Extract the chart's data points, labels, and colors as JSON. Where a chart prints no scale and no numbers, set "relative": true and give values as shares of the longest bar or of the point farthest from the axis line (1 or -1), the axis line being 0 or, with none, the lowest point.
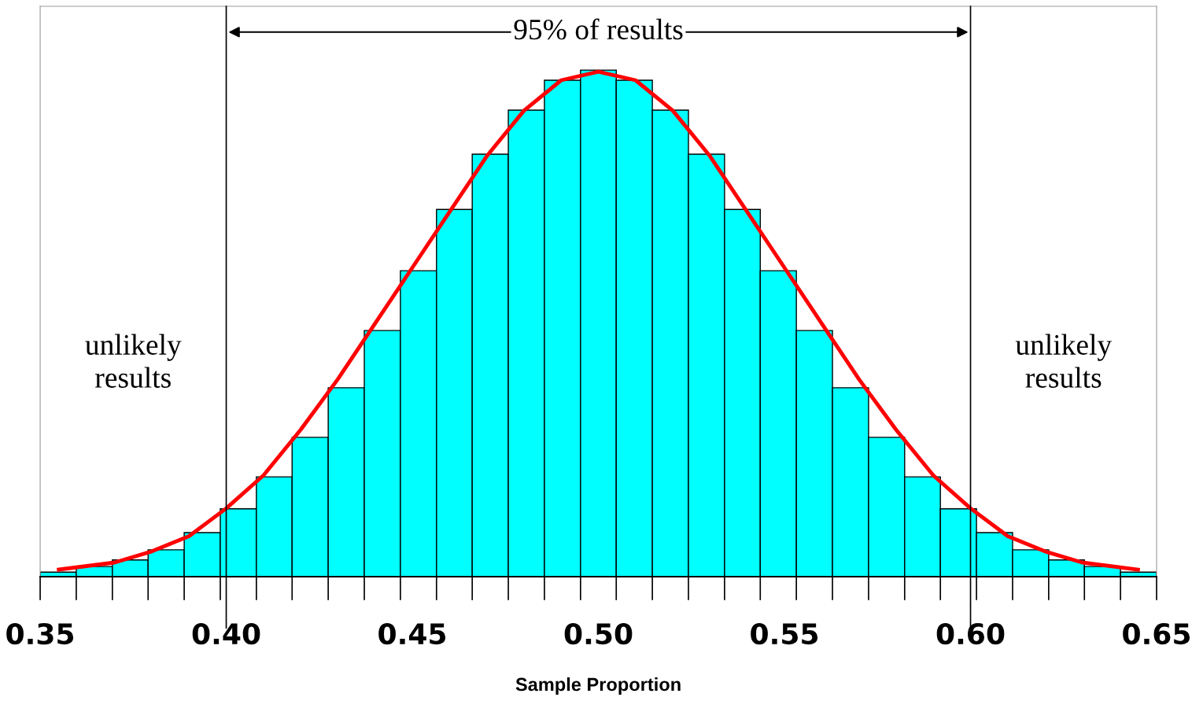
{
  "chart_data": {
    "type": "histogram",
    "relative": true,
    "xlabel": "Sample Proportion",
    "xlim": [
      0.35,
      0.65
    ],
    "xticks": [
      {
        "value": 0.35,
        "label": "0.35"
      },
      {
        "value": 0.4,
        "label": "0.40"
      },
      {
        "value": 0.45,
        "label": "0.45"
      },
      {
        "value": 0.5,
        "label": "0.50"
      },
      {
        "value": 0.55,
        "label": "0.55"
      },
      {
        "value": 0.6,
        "label": "0.60"
      },
      {
        "value": 0.65,
        "label": "0.65"
      }
    ],
    "series": [
      {
        "color": "#00ffff",
        "bins": [
          0.35,
          0.3597,
          0.3694,
          0.379,
          0.3887,
          0.3984,
          0.4081,
          0.4177,
          0.4274,
          0.4371,
          0.4468,
          0.4565,
          0.4661,
          0.4758,
          0.4855,
          0.4952,
          0.5048,
          0.5145,
          0.5242,
          0.5339,
          0.5435,
          0.5532,
          0.5629,
          0.5726,
          0.5823,
          0.5919,
          0.6016,
          0.6113,
          0.621,
          0.6306,
          0.6403,
          0.65
        ],
        "values": [
          0.009,
          0.02,
          0.033,
          0.053,
          0.087,
          0.134,
          0.197,
          0.275,
          0.373,
          0.486,
          0.604,
          0.725,
          0.834,
          0.921,
          0.98,
          1,
          0.98,
          0.921,
          0.834,
          0.725,
          0.604,
          0.486,
          0.373,
          0.275,
          0.197,
          0.134,
          0.087,
          0.053,
          0.033,
          0.02,
          0.009
        ]
      },
      {
        "type": "line",
        "color": "#ff0000",
        "x": [
          0.355,
          0.37,
          0.38,
          0.39,
          0.4,
          0.41,
          0.42,
          0.43,
          0.44,
          0.45,
          0.46,
          0.47,
          0.48,
          0.49,
          0.5,
          0.51,
          0.52,
          0.53,
          0.54,
          0.55,
          0.56,
          0.57,
          0.58,
          0.59,
          0.6,
          0.61,
          0.62,
          0.63,
          0.645
        ],
        "values": [
          0.014,
          0.028,
          0.05,
          0.08,
          0.135,
          0.2,
          0.29,
          0.39,
          0.5,
          0.61,
          0.72,
          0.83,
          0.92,
          0.98,
          0.997,
          0.98,
          0.92,
          0.83,
          0.72,
          0.61,
          0.5,
          0.39,
          0.29,
          0.2,
          0.135,
          0.08,
          0.05,
          0.028,
          0.014
        ]
      }
    ],
    "ref_lines": [
      {
        "axis": "x",
        "value": 0.4,
        "color": "#000000"
      },
      {
        "axis": "x",
        "value": 0.6,
        "color": "#000000"
      }
    ],
    "annotations": [
      "95% of results",
      "unlikely\nresults",
      "unlikely\nresults"
    ],
    "grid": false,
    "legend": false
  }
}
